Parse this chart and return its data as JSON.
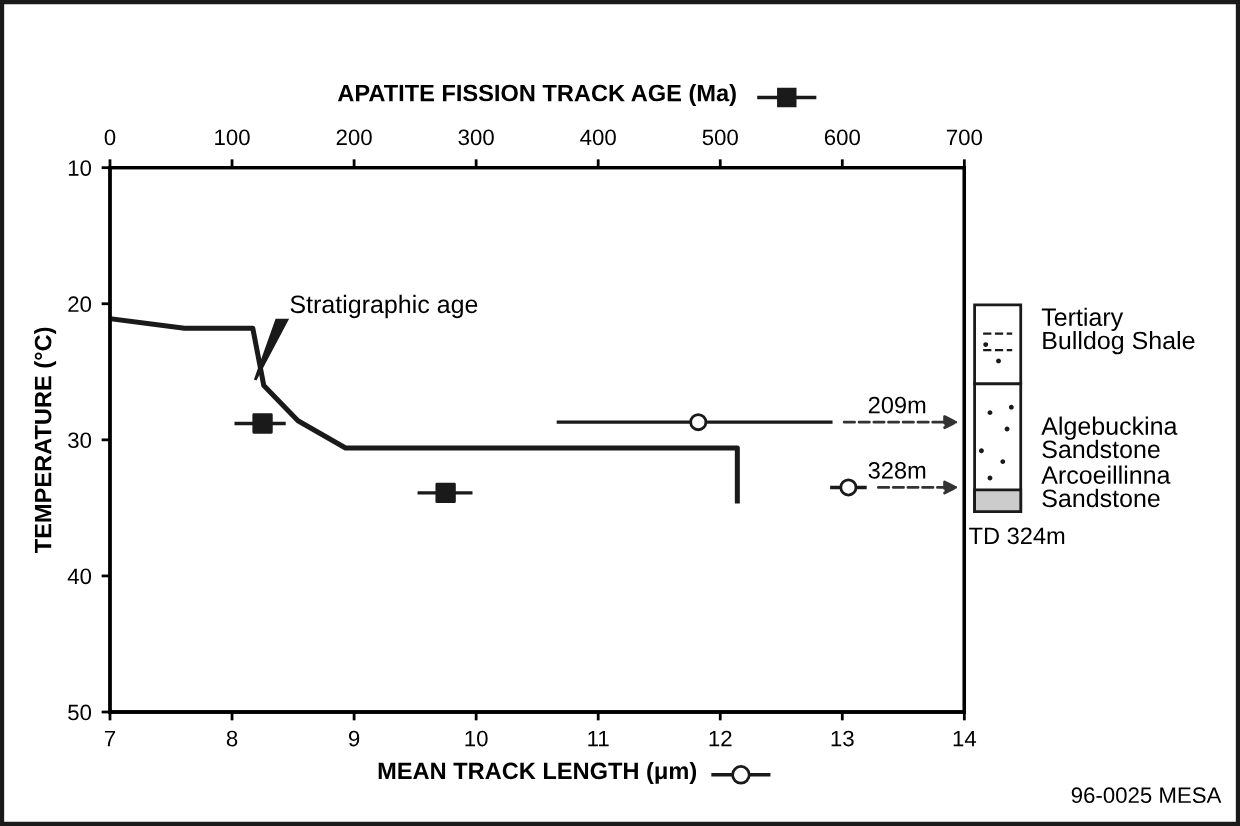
{
  "chart_data": {
    "type": "scatter",
    "xlabel": "MEAN TRACK LENGTH (μm)",
    "x2label": "APATITE FISSION TRACK AGE (Ma)",
    "ylabel": "TEMPERATURE (°C)",
    "xlim": [
      7,
      14
    ],
    "xticks": [
      7,
      8,
      9,
      10,
      11,
      12,
      13,
      14
    ],
    "x2lim": [
      0,
      700
    ],
    "x2ticks": [
      0,
      100,
      200,
      300,
      400,
      500,
      600,
      700
    ],
    "ylim": [
      50,
      10
    ],
    "yticks": [
      10,
      20,
      30,
      40,
      50
    ],
    "grid": false,
    "series": [
      {
        "type": "line",
        "axis": "x2",
        "color": "#1a1a1a",
        "marker": "none",
        "line_style": "solid",
        "x": [
          0,
          61,
          117,
          126,
          154,
          193,
          514,
          514
        ],
        "values": [
          21.1,
          21.8,
          21.8,
          26,
          28.6,
          30.6,
          30.6,
          34.5
        ]
      },
      {
        "axis": "x2",
        "color": "#1a1a1a",
        "marker": "square",
        "x": [
          125,
          275
        ],
        "values": [
          28.8,
          33.9
        ],
        "xerrors": [
          [
            102,
            144
          ],
          [
            252,
            297
          ]
        ]
      },
      {
        "color": "#1a1a1a",
        "marker": "circle",
        "x": [
          11.82,
          13.05
        ],
        "values": [
          28.7,
          33.5
        ],
        "xerrors": [
          [
            10.66,
            12.92
          ],
          [
            12.9,
            13.2
          ]
        ]
      }
    ],
    "annotations": [
      "Stratigraphic age",
      "209m",
      "328m",
      "Tertiary\nBulldog Shale",
      "Algebuckina\nSandstone",
      "Arcoeillinna\nSandstone",
      "TD 324m",
      "96-0025 MESA"
    ]
  }
}
